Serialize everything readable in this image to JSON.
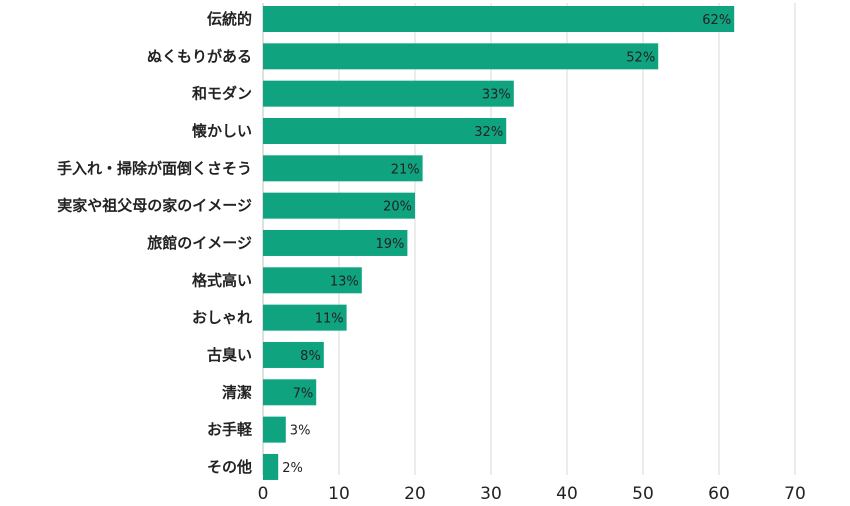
{
  "chart_data": {
    "type": "bar",
    "orientation": "horizontal",
    "categories": [
      "伝統的",
      "ぬくもりがある",
      "和モダン",
      "懐かしい",
      "手入れ・掃除が面倒くさそう",
      "実家や祖父母の家のイメージ",
      "旅館のイメージ",
      "格式高い",
      "おしゃれ",
      "古臭い",
      "清潔",
      "お手軽",
      "その他"
    ],
    "values": [
      62,
      52,
      33,
      32,
      21,
      20,
      19,
      13,
      11,
      8,
      7,
      3,
      2
    ],
    "value_labels": [
      "62%",
      "52%",
      "33%",
      "32%",
      "21%",
      "20%",
      "19%",
      "13%",
      "11%",
      "8%",
      "7%",
      "3%",
      "2%"
    ],
    "xlim": [
      0,
      70
    ],
    "x_ticks": [
      "0",
      "10",
      "20",
      "30",
      "40",
      "50",
      "60",
      "70"
    ],
    "bar_color": "#0fa47f",
    "grid": true,
    "legend": "none"
  }
}
